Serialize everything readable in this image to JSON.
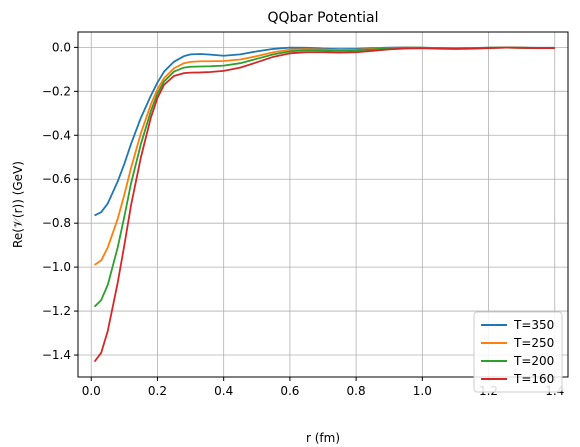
{
  "chart_data": {
    "type": "line",
    "title": "QQbar Potential",
    "xlabel": "r (fm)",
    "ylabel": "Re(𝒱(r)) (GeV)",
    "xlim": [
      -0.04,
      1.44
    ],
    "ylim": [
      -1.5,
      0.07
    ],
    "grid": true,
    "legend_position": "lower-right",
    "x_ticks": [
      0.0,
      0.2,
      0.4,
      0.6,
      0.8,
      1.0,
      1.2,
      1.4
    ],
    "x_tick_labels": [
      "0.0",
      "0.2",
      "0.4",
      "0.6",
      "0.8",
      "1.0",
      "1.2",
      "1.4"
    ],
    "y_ticks": [
      0.0,
      -0.2,
      -0.4,
      -0.6,
      -0.8,
      -1.0,
      -1.2,
      -1.4
    ],
    "y_tick_labels": [
      "0.0",
      "−0.2",
      "−0.4",
      "−0.6",
      "−0.8",
      "−1.0",
      "−1.2",
      "−1.4"
    ],
    "series": [
      {
        "name": "T=350",
        "color": "#1f77b4",
        "x": [
          0.01,
          0.03,
          0.05,
          0.08,
          0.1,
          0.12,
          0.15,
          0.18,
          0.2,
          0.22,
          0.25,
          0.28,
          0.3,
          0.33,
          0.36,
          0.4,
          0.45,
          0.5,
          0.55,
          0.6,
          0.65,
          0.7,
          0.75,
          0.8,
          0.85,
          0.9,
          0.95,
          1.0,
          1.05,
          1.1,
          1.15,
          1.2,
          1.25,
          1.3,
          1.35,
          1.4
        ],
        "y": [
          -0.765,
          -0.75,
          -0.71,
          -0.61,
          -0.53,
          -0.44,
          -0.32,
          -0.22,
          -0.16,
          -0.11,
          -0.065,
          -0.04,
          -0.032,
          -0.03,
          -0.033,
          -0.038,
          -0.032,
          -0.018,
          -0.007,
          -0.001,
          -0.002,
          -0.006,
          -0.008,
          -0.007,
          -0.004,
          -0.001,
          0.0,
          -0.001,
          -0.003,
          -0.004,
          -0.003,
          -0.001,
          0.0,
          -0.001,
          -0.002,
          -0.002
        ]
      },
      {
        "name": "T=250",
        "color": "#ff7f0e",
        "x": [
          0.01,
          0.03,
          0.05,
          0.08,
          0.1,
          0.12,
          0.15,
          0.18,
          0.2,
          0.22,
          0.25,
          0.28,
          0.3,
          0.33,
          0.36,
          0.4,
          0.45,
          0.5,
          0.55,
          0.6,
          0.65,
          0.7,
          0.75,
          0.8,
          0.85,
          0.9,
          0.95,
          1.0,
          1.05,
          1.1,
          1.15,
          1.2,
          1.25,
          1.3,
          1.35,
          1.4
        ],
        "y": [
          -0.99,
          -0.97,
          -0.91,
          -0.78,
          -0.67,
          -0.55,
          -0.39,
          -0.26,
          -0.19,
          -0.14,
          -0.095,
          -0.072,
          -0.066,
          -0.063,
          -0.063,
          -0.062,
          -0.055,
          -0.04,
          -0.022,
          -0.01,
          -0.008,
          -0.01,
          -0.012,
          -0.011,
          -0.007,
          -0.003,
          -0.001,
          -0.002,
          -0.004,
          -0.005,
          -0.004,
          -0.002,
          -0.001,
          -0.002,
          -0.003,
          -0.003
        ]
      },
      {
        "name": "T=200",
        "color": "#2ca02c",
        "x": [
          0.01,
          0.03,
          0.05,
          0.08,
          0.1,
          0.12,
          0.15,
          0.18,
          0.2,
          0.22,
          0.25,
          0.28,
          0.3,
          0.33,
          0.36,
          0.4,
          0.45,
          0.5,
          0.55,
          0.6,
          0.65,
          0.7,
          0.75,
          0.8,
          0.85,
          0.9,
          0.95,
          1.0,
          1.05,
          1.1,
          1.15,
          1.2,
          1.25,
          1.3,
          1.35,
          1.4
        ],
        "y": [
          -1.18,
          -1.15,
          -1.08,
          -0.91,
          -0.77,
          -0.62,
          -0.44,
          -0.29,
          -0.21,
          -0.155,
          -0.11,
          -0.092,
          -0.088,
          -0.087,
          -0.086,
          -0.083,
          -0.072,
          -0.052,
          -0.032,
          -0.018,
          -0.013,
          -0.014,
          -0.016,
          -0.014,
          -0.009,
          -0.004,
          -0.002,
          -0.002,
          -0.004,
          -0.005,
          -0.004,
          -0.002,
          -0.001,
          -0.002,
          -0.003,
          -0.003
        ]
      },
      {
        "name": "T=160",
        "color": "#d62728",
        "x": [
          0.01,
          0.03,
          0.05,
          0.08,
          0.1,
          0.12,
          0.15,
          0.18,
          0.2,
          0.22,
          0.25,
          0.28,
          0.3,
          0.33,
          0.36,
          0.4,
          0.45,
          0.5,
          0.55,
          0.6,
          0.65,
          0.7,
          0.75,
          0.8,
          0.85,
          0.9,
          0.95,
          1.0,
          1.05,
          1.1,
          1.15,
          1.2,
          1.25,
          1.3,
          1.35,
          1.4
        ],
        "y": [
          -1.43,
          -1.39,
          -1.29,
          -1.07,
          -0.9,
          -0.72,
          -0.5,
          -0.32,
          -0.23,
          -0.17,
          -0.13,
          -0.117,
          -0.115,
          -0.114,
          -0.112,
          -0.107,
          -0.092,
          -0.068,
          -0.043,
          -0.027,
          -0.022,
          -0.022,
          -0.024,
          -0.022,
          -0.016,
          -0.009,
          -0.005,
          -0.004,
          -0.006,
          -0.007,
          -0.006,
          -0.003,
          -0.001,
          -0.002,
          -0.003,
          -0.003
        ]
      }
    ]
  }
}
